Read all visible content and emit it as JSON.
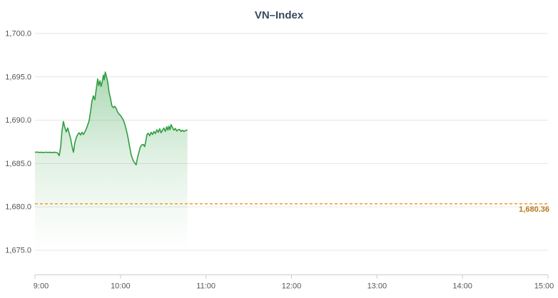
{
  "page": {
    "background": "#ffffff"
  },
  "chart_data": {
    "type": "area",
    "title": "VN–Index",
    "xlabel": "",
    "ylabel": "",
    "legend": "none",
    "grid": "horizontal-only",
    "x_unit": "minutes_after_09:00",
    "xlim_minutes": [
      0,
      360
    ],
    "ylim": [
      1672.16,
      1700
    ],
    "x_ticks": [
      {
        "minutes": 0,
        "label": "9:00"
      },
      {
        "minutes": 60,
        "label": "10:00"
      },
      {
        "minutes": 120,
        "label": "11:00"
      },
      {
        "minutes": 180,
        "label": "12:00"
      },
      {
        "minutes": 240,
        "label": "13:00"
      },
      {
        "minutes": 300,
        "label": "14:00"
      },
      {
        "minutes": 360,
        "label": "15:00"
      }
    ],
    "y_ticks": [
      {
        "value": 1700,
        "label": "1,700.0"
      },
      {
        "value": 1695,
        "label": "1,695.0"
      },
      {
        "value": 1690,
        "label": "1,690.0"
      },
      {
        "value": 1685,
        "label": "1,685.0"
      },
      {
        "value": 1680,
        "label": "1,680.0"
      },
      {
        "value": 1675,
        "label": "1,675.0"
      }
    ],
    "ref_line": {
      "value": 1680.36,
      "label": "1,680.36",
      "style": "dashed",
      "line_color": "#f0a42e",
      "label_color": "#b5791c"
    },
    "series": [
      {
        "name": "VN-Index",
        "line_color": "#2f9e41",
        "fill": "green-gradient-to-transparent",
        "points": [
          [
            0,
            1686.3
          ],
          [
            1.5,
            1686.32
          ],
          [
            3,
            1686.28
          ],
          [
            4.5,
            1686.3
          ],
          [
            6,
            1686.27
          ],
          [
            7.5,
            1686.31
          ],
          [
            9,
            1686.28
          ],
          [
            10.5,
            1686.3
          ],
          [
            12,
            1686.26
          ],
          [
            13.5,
            1686.3
          ],
          [
            15,
            1686.28
          ],
          [
            16,
            1686.2
          ],
          [
            17,
            1685.9
          ],
          [
            18,
            1686.9
          ],
          [
            19,
            1688.8
          ],
          [
            20,
            1689.85
          ],
          [
            21,
            1689.15
          ],
          [
            22,
            1688.65
          ],
          [
            23,
            1689.1
          ],
          [
            24,
            1688.5
          ],
          [
            25,
            1687.9
          ],
          [
            26,
            1687.0
          ],
          [
            27,
            1686.3
          ],
          [
            28,
            1687.4
          ],
          [
            29,
            1688.0
          ],
          [
            30,
            1688.35
          ],
          [
            31,
            1688.55
          ],
          [
            32,
            1688.3
          ],
          [
            33,
            1688.6
          ],
          [
            34,
            1688.35
          ],
          [
            35,
            1688.65
          ],
          [
            36,
            1689.0
          ],
          [
            37,
            1689.45
          ],
          [
            38,
            1689.95
          ],
          [
            39,
            1691.0
          ],
          [
            40,
            1692.2
          ],
          [
            41,
            1692.8
          ],
          [
            42,
            1692.35
          ],
          [
            43,
            1693.6
          ],
          [
            44,
            1694.75
          ],
          [
            44.8,
            1694.0
          ],
          [
            45.6,
            1694.55
          ],
          [
            46.4,
            1693.9
          ],
          [
            47.2,
            1694.45
          ],
          [
            48,
            1695.2
          ],
          [
            48.6,
            1694.65
          ],
          [
            49.3,
            1695.55
          ],
          [
            50,
            1695.15
          ],
          [
            51,
            1694.45
          ],
          [
            52,
            1693.2
          ],
          [
            53,
            1692.5
          ],
          [
            54,
            1691.65
          ],
          [
            55,
            1691.45
          ],
          [
            56,
            1691.6
          ],
          [
            57,
            1691.35
          ],
          [
            58,
            1690.95
          ],
          [
            59,
            1690.7
          ],
          [
            60,
            1690.55
          ],
          [
            61,
            1690.3
          ],
          [
            62,
            1690.05
          ],
          [
            63,
            1689.55
          ],
          [
            64,
            1688.95
          ],
          [
            65,
            1688.25
          ],
          [
            66,
            1687.35
          ],
          [
            67.5,
            1686.0
          ],
          [
            69,
            1685.3
          ],
          [
            70.5,
            1684.95
          ],
          [
            71,
            1684.85
          ],
          [
            72,
            1685.7
          ],
          [
            73,
            1686.35
          ],
          [
            74,
            1686.95
          ],
          [
            75,
            1687.15
          ],
          [
            76,
            1687.2
          ],
          [
            77,
            1686.95
          ],
          [
            78,
            1687.8
          ],
          [
            78.6,
            1688.35
          ],
          [
            79.5,
            1688.5
          ],
          [
            80.5,
            1688.2
          ],
          [
            81.5,
            1688.6
          ],
          [
            82.5,
            1688.35
          ],
          [
            83.5,
            1688.7
          ],
          [
            84.5,
            1688.45
          ],
          [
            85.5,
            1688.9
          ],
          [
            86.5,
            1688.6
          ],
          [
            87.5,
            1689.0
          ],
          [
            88.5,
            1688.55
          ],
          [
            89.5,
            1688.85
          ],
          [
            90.5,
            1689.1
          ],
          [
            91.5,
            1688.7
          ],
          [
            92.5,
            1689.25
          ],
          [
            93.3,
            1688.85
          ],
          [
            94,
            1689.3
          ],
          [
            94.8,
            1688.9
          ],
          [
            95.5,
            1689.5
          ],
          [
            96.5,
            1689.15
          ],
          [
            97.5,
            1688.85
          ],
          [
            98.5,
            1689.05
          ],
          [
            99.5,
            1688.75
          ],
          [
            100.5,
            1688.9
          ],
          [
            101.5,
            1688.95
          ],
          [
            102.5,
            1688.7
          ],
          [
            103.5,
            1688.85
          ],
          [
            104.5,
            1688.7
          ],
          [
            105.5,
            1688.8
          ],
          [
            106.5,
            1688.85
          ],
          [
            107,
            1688.9
          ]
        ]
      }
    ],
    "colors": {
      "grid_line": "#e6e6e6",
      "axis_line": "#cccccc",
      "tick_mark": "#cccccc",
      "tick_text": "#555555",
      "title_text": "#3a4a5c",
      "series_green": "#2f9e41",
      "ref_dash_orange": "#f0a42e",
      "ref_label_orange": "#b5791c"
    }
  }
}
